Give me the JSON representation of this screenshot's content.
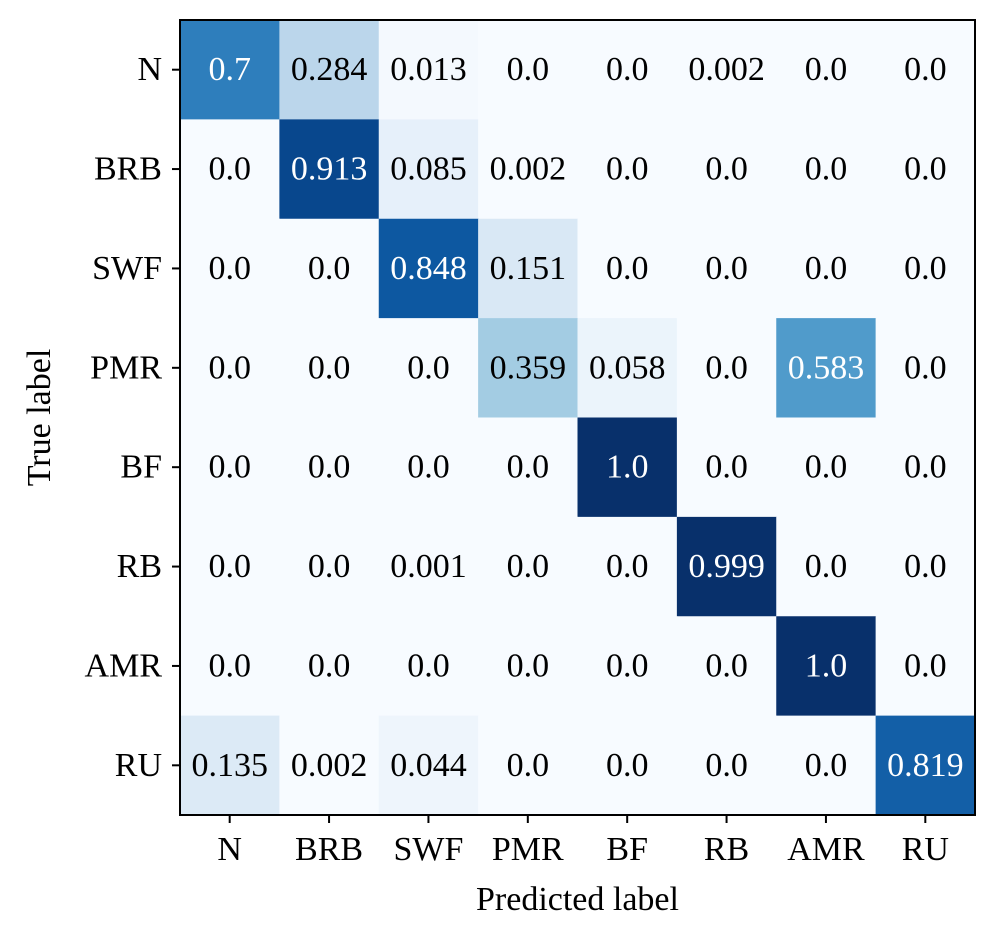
{
  "chart_data": {
    "type": "heatmap",
    "title": "",
    "xlabel": "Predicted label",
    "ylabel": "True label",
    "x_categories": [
      "N",
      "BRB",
      "SWF",
      "PMR",
      "BF",
      "RB",
      "AMR",
      "RU"
    ],
    "y_categories": [
      "N",
      "BRB",
      "SWF",
      "PMR",
      "BF",
      "RB",
      "AMR",
      "RU"
    ],
    "values": [
      [
        "0.7",
        "0.284",
        "0.013",
        "0.0",
        "0.0",
        "0.002",
        "0.0",
        "0.0"
      ],
      [
        "0.0",
        "0.913",
        "0.085",
        "0.002",
        "0.0",
        "0.0",
        "0.0",
        "0.0"
      ],
      [
        "0.0",
        "0.0",
        "0.848",
        "0.151",
        "0.0",
        "0.0",
        "0.0",
        "0.0"
      ],
      [
        "0.0",
        "0.0",
        "0.0",
        "0.359",
        "0.058",
        "0.0",
        "0.583",
        "0.0"
      ],
      [
        "0.0",
        "0.0",
        "0.0",
        "0.0",
        "1.0",
        "0.0",
        "0.0",
        "0.0"
      ],
      [
        "0.0",
        "0.0",
        "0.001",
        "0.0",
        "0.0",
        "0.999",
        "0.0",
        "0.0"
      ],
      [
        "0.0",
        "0.0",
        "0.0",
        "0.0",
        "0.0",
        "0.0",
        "1.0",
        "0.0"
      ],
      [
        "0.135",
        "0.002",
        "0.044",
        "0.0",
        "0.0",
        "0.0",
        "0.0",
        "0.819"
      ]
    ],
    "value_range": [
      0,
      1
    ],
    "colormap": "Blues",
    "grid": false,
    "legend": "none"
  }
}
